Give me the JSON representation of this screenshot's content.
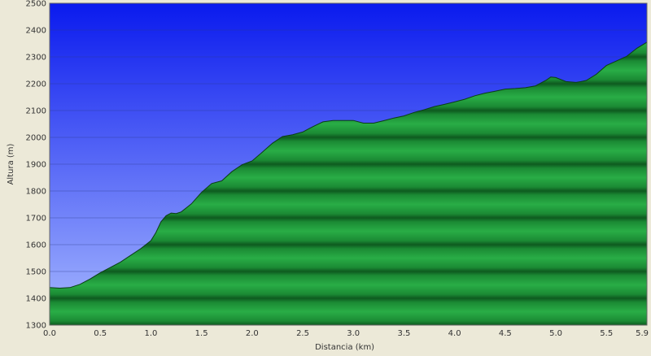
{
  "chart_data": {
    "type": "area",
    "xlabel": "Distancia  (km)",
    "ylabel": "Altura (m)",
    "xlim": [
      0.0,
      5.9
    ],
    "ylim": [
      1300,
      2500
    ],
    "x_ticks": [
      "0.0",
      "0.5",
      "1.0",
      "1.5",
      "2.0",
      "2.5",
      "3.0",
      "3.5",
      "4.0",
      "4.5",
      "5.0",
      "5.5",
      "5.9"
    ],
    "y_ticks": [
      "1300",
      "1400",
      "1500",
      "1600",
      "1700",
      "1800",
      "1900",
      "2000",
      "2100",
      "2200",
      "2300",
      "2400",
      "2500"
    ],
    "grid": true,
    "series": [
      {
        "x": [
          0.0,
          0.1,
          0.2,
          0.3,
          0.4,
          0.5,
          0.6,
          0.7,
          0.8,
          0.9,
          1.0,
          1.05,
          1.1,
          1.15,
          1.2,
          1.25,
          1.3,
          1.4,
          1.5,
          1.6,
          1.7,
          1.8,
          1.9,
          2.0,
          2.1,
          2.2,
          2.3,
          2.4,
          2.5,
          2.6,
          2.7,
          2.8,
          2.9,
          3.0,
          3.1,
          3.2,
          3.3,
          3.4,
          3.5,
          3.6,
          3.7,
          3.8,
          3.9,
          4.0,
          4.1,
          4.2,
          4.3,
          4.4,
          4.5,
          4.6,
          4.7,
          4.8,
          4.9,
          4.95,
          5.0,
          5.1,
          5.2,
          5.25,
          5.3,
          5.4,
          5.5,
          5.6,
          5.7,
          5.8,
          5.9
        ],
        "values": [
          1440,
          1438,
          1440,
          1452,
          1472,
          1495,
          1515,
          1535,
          1560,
          1585,
          1615,
          1645,
          1685,
          1708,
          1718,
          1716,
          1722,
          1752,
          1795,
          1828,
          1838,
          1872,
          1898,
          1912,
          1945,
          1978,
          2003,
          2010,
          2020,
          2040,
          2058,
          2063,
          2063,
          2063,
          2053,
          2053,
          2062,
          2072,
          2080,
          2093,
          2103,
          2115,
          2123,
          2132,
          2142,
          2155,
          2165,
          2172,
          2180,
          2182,
          2185,
          2192,
          2212,
          2225,
          2223,
          2208,
          2205,
          2208,
          2212,
          2235,
          2268,
          2285,
          2302,
          2332,
          2355
        ],
        "color": "#1f9e3d"
      }
    ],
    "sky_color_top": "#0a1aee",
    "sky_color_bottom": "#a7b9ff",
    "fill_color": "#1f9e3d"
  }
}
